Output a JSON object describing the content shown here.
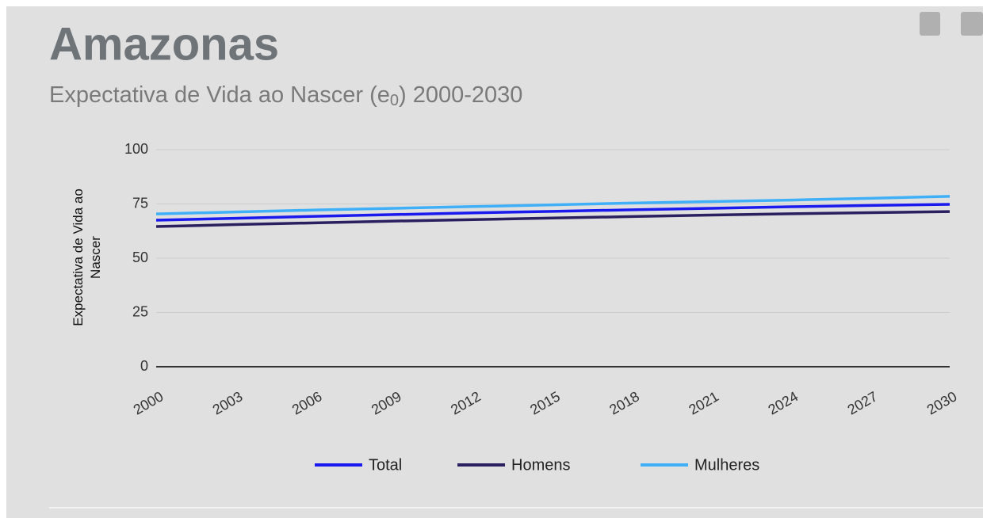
{
  "chart_data": {
    "type": "line",
    "title": "Amazonas",
    "subtitle": [
      "Expectativa de Vida ao Nascer (e",
      "0",
      ") 2000-2030"
    ],
    "y_label": "Expectativa de Vida ao Nascer",
    "x": [
      2000,
      2003,
      2006,
      2009,
      2012,
      2015,
      2018,
      2021,
      2024,
      2027,
      2030
    ],
    "xlim": [
      2000,
      2030
    ],
    "xticks": [
      2000,
      2003,
      2006,
      2009,
      2012,
      2015,
      2018,
      2021,
      2024,
      2027,
      2030
    ],
    "ylim": [
      0,
      100
    ],
    "yticks": [
      0,
      25,
      50,
      75,
      100
    ],
    "grid": true,
    "legend": "bottom",
    "series": [
      {
        "name": "Total",
        "color": "#1a1aee",
        "values": [
          67.5,
          68.4,
          69.3,
          70.1,
          70.9,
          71.6,
          72.3,
          73.0,
          73.7,
          74.3,
          74.8
        ]
      },
      {
        "name": "Homens",
        "color": "#2a2060",
        "values": [
          64.6,
          65.5,
          66.3,
          67.1,
          67.8,
          68.5,
          69.2,
          69.9,
          70.5,
          71.0,
          71.5
        ]
      },
      {
        "name": "Mulheres",
        "color": "#3fb0f8",
        "values": [
          70.4,
          71.3,
          72.2,
          73.0,
          73.8,
          74.6,
          75.4,
          76.1,
          76.8,
          77.6,
          78.5
        ]
      }
    ]
  }
}
